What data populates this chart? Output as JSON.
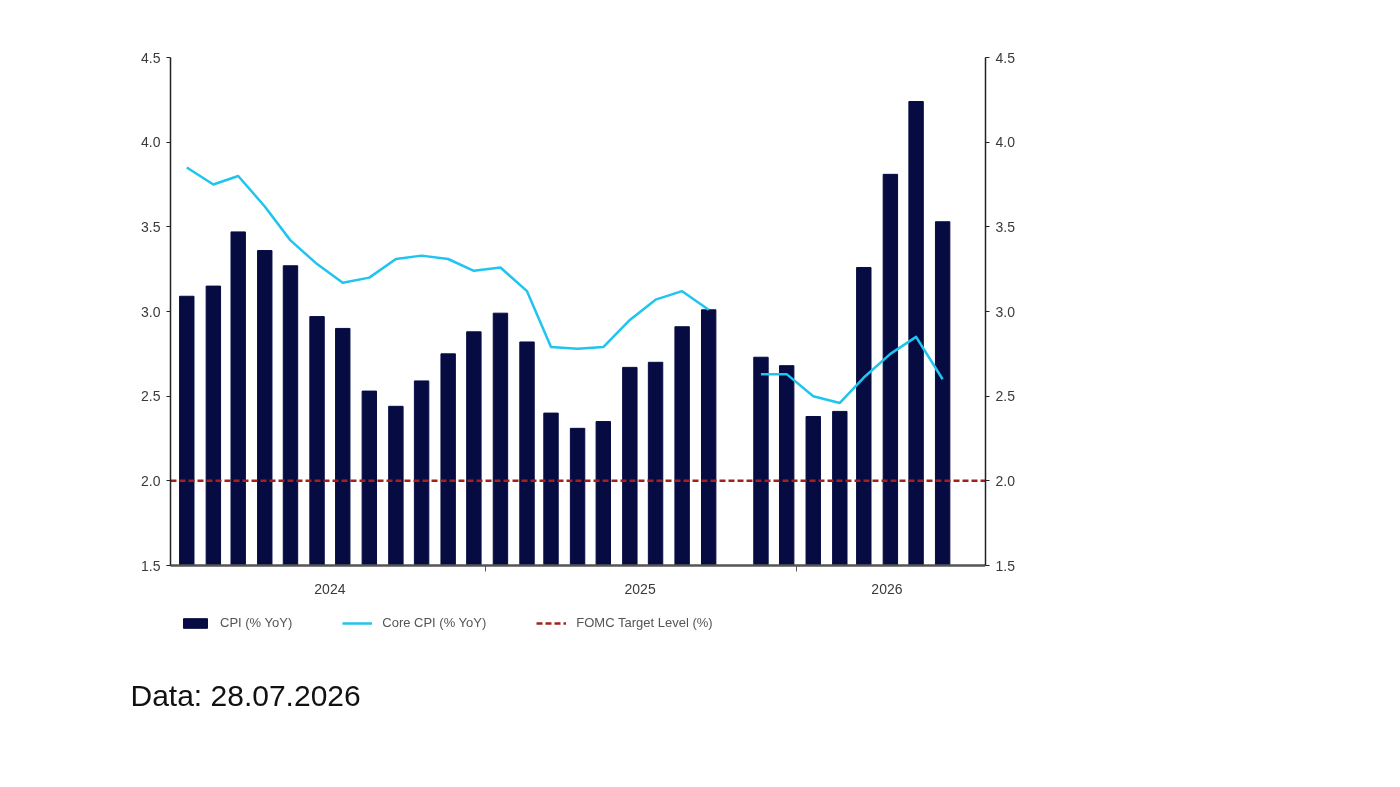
{
  "chart_data": {
    "type": "bar",
    "x": [
      "2024-01",
      "2024-02",
      "2024-03",
      "2024-04",
      "2024-05",
      "2024-06",
      "2024-07",
      "2024-08",
      "2024-09",
      "2024-10",
      "2024-11",
      "2024-12",
      "2025-01",
      "2025-02",
      "2025-03",
      "2025-04",
      "2025-05",
      "2025-06",
      "2025-07",
      "2025-08",
      "2025-09",
      "2025-10",
      "2025-11",
      "2025-12",
      "2026-01",
      "2026-02",
      "2026-03",
      "2026-04",
      "2026-05",
      "2026-06"
    ],
    "series": [
      {
        "name": "CPI (% YoY)",
        "color": "#060c42",
        "values": [
          3.09,
          3.15,
          3.47,
          3.36,
          3.27,
          2.97,
          2.9,
          2.53,
          2.44,
          2.59,
          2.75,
          2.88,
          2.99,
          2.82,
          2.4,
          2.31,
          2.35,
          2.67,
          2.7,
          2.91,
          3.01,
          null,
          2.73,
          2.68,
          2.38,
          2.41,
          3.26,
          3.81,
          4.24,
          3.53
        ]
      },
      {
        "name": "Core CPI (% YoY)",
        "type": "line",
        "color": "#1fc4ef",
        "values": [
          3.85,
          3.75,
          3.8,
          3.62,
          3.42,
          3.28,
          3.17,
          3.2,
          3.31,
          3.33,
          3.31,
          3.24,
          3.26,
          3.12,
          2.79,
          2.78,
          2.79,
          2.95,
          3.07,
          3.12,
          3.01,
          null,
          2.63,
          2.63,
          2.5,
          2.46,
          2.61,
          2.75,
          2.85,
          2.6
        ]
      }
    ],
    "xlim": [
      "2023-12-13",
      "2026-07-21"
    ],
    "xticks": [
      {
        "value": "2024-06-16",
        "label": "2024"
      },
      {
        "value": "2024-12-15",
        "label": null
      },
      {
        "value": "2025-06-13",
        "label": "2025"
      },
      {
        "value": "2025-12-12",
        "label": null
      },
      {
        "value": "2026-03-28",
        "label": "2026"
      }
    ],
    "ylim": [
      1.5,
      4.5
    ],
    "yticks": [
      1.5,
      {
        "value": 2,
        "label": "2.0"
      },
      2.5,
      {
        "value": 3,
        "label": "3.0"
      },
      3.5,
      {
        "value": 4,
        "label": "4.0"
      },
      4.5
    ],
    "y2lim": [
      1.5,
      4.5
    ],
    "y2ticks": [
      1.5,
      {
        "value": 2,
        "label": "2.0"
      },
      2.5,
      {
        "value": 3,
        "label": "3.0"
      },
      3.5,
      {
        "value": 4,
        "label": "4.0"
      },
      4.5
    ],
    "ref_lines": [
      {
        "axis": "y",
        "value": 2,
        "label": "FOMC Target Level (%)",
        "color": "#a3201f",
        "line_style": "dashed"
      }
    ],
    "legend": "bottom",
    "annotations": [
      "Data: 28.07.2026"
    ]
  }
}
